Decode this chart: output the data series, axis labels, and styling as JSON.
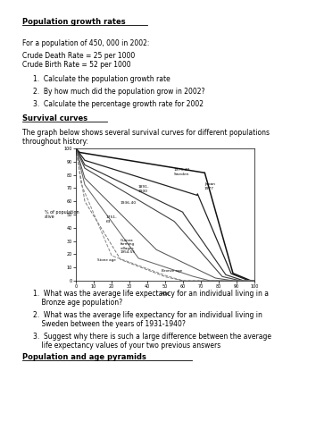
{
  "title1": "Population growth rates",
  "para1": "For a population of 450, 000 in 2002:",
  "para2a": "Crude Death Rate = 25 per 1000",
  "para2b": "Crude Birth Rate = 52 per 1000",
  "q1_1": "1.  Calculate the population growth rate",
  "q1_2": "2.  By how much did the population grow in 2002?",
  "q1_3": "3.  Calculate the percentage growth rate for 2002",
  "title2": "Survival curves",
  "para3_1": "The graph below shows several survival curves for different populations",
  "para3_2": "throughout history:",
  "graph_xlabel": "Age",
  "graph_ylabel": "% of population\nalive",
  "q2_1a": "1.  What was the average life expectancy for an individual living in a",
  "q2_1b": "    Bronze age population?",
  "q2_2a": "2.  What was the average life expectancy for an individual living in",
  "q2_2b": "    Sweden between the years of 1931-1940?",
  "q2_3a": "3.  Suggest why there is such a large difference between the average",
  "q2_3b": "    life expectancy values of your two previous answers",
  "title3": "Population and age pyramids",
  "bg_color": "#ffffff",
  "font_size_title": 5.5,
  "font_size_body": 5.0,
  "font_size_list": 5.0
}
